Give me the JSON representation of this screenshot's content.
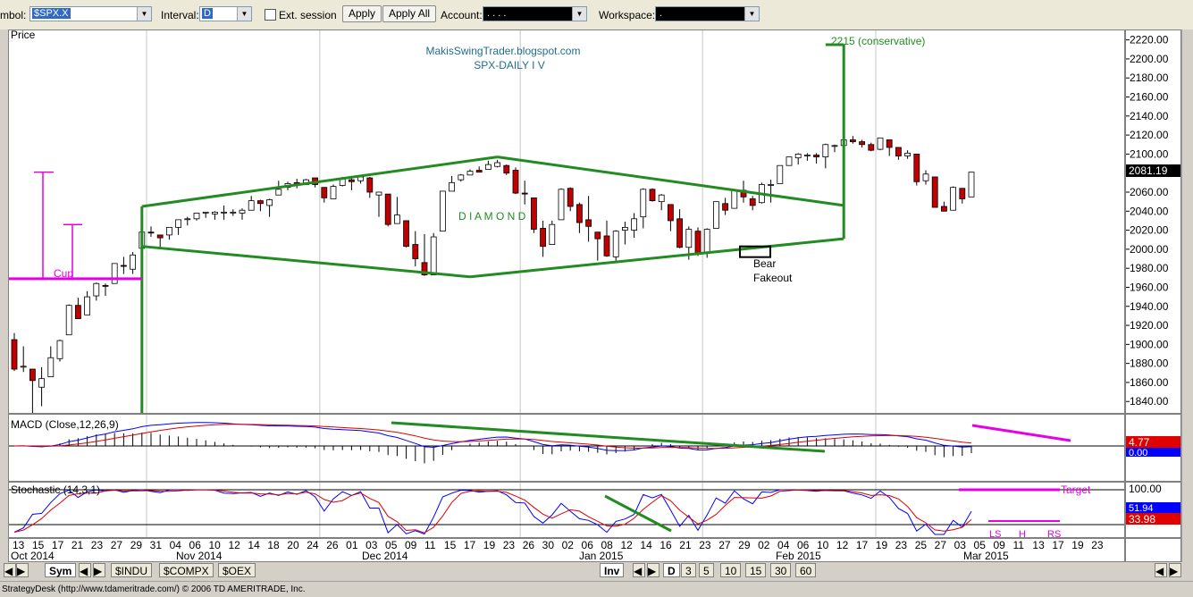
{
  "toolbar": {
    "symbol_label": "mbol:",
    "symbol_value": "$SPX.X",
    "interval_label": "Interval:",
    "interval_value": "D",
    "ext_session_label": "Ext. session",
    "apply_label": "Apply",
    "apply_all_label": "Apply All",
    "account_label": "Account:",
    "account_value": ". . . .",
    "workspace_label": "Workspace:",
    "workspace_value": "."
  },
  "price_pane": {
    "title": "Price",
    "watermark_line1": "MakisSwingTrader.blogspot.com",
    "watermark_line2": "SPX-DAILY  I V",
    "pattern_label": "D I A M O N D",
    "target_label": "2215 (conservative)",
    "cup_label": "Cup",
    "fakeout_line1": "Bear",
    "fakeout_line2": "Fakeout",
    "last_price": "2081.19",
    "y_ticks": [
      "2220.00",
      "2200.00",
      "2180.00",
      "2160.00",
      "2140.00",
      "2120.00",
      "2100.00",
      "2080.00",
      "2060.00",
      "2040.00",
      "2020.00",
      "2000.00",
      "1980.00",
      "1960.00",
      "1940.00",
      "1920.00",
      "1900.00",
      "1880.00",
      "1860.00",
      "1840.00"
    ]
  },
  "macd_pane": {
    "title": "MACD (Close,12,26,9)",
    "value1": "4.77",
    "value2": "0.00"
  },
  "stoch_pane": {
    "title": "Stochastic (14,3,1)",
    "target_label": "Target",
    "ls_label": "LS",
    "h_label": "H",
    "rs_label": "RS",
    "level_100": "100.00",
    "value1": "51.94",
    "value2": "33.98"
  },
  "x_axis": {
    "day_labels": [
      "13",
      "15",
      "17",
      "21",
      "23",
      "27",
      "29",
      "31",
      "04",
      "06",
      "10",
      "12",
      "14",
      "18",
      "20",
      "24",
      "26",
      "01",
      "03",
      "05",
      "09",
      "11",
      "15",
      "17",
      "19",
      "23",
      "26",
      "30",
      "02",
      "06",
      "08",
      "12",
      "14",
      "16",
      "21",
      "23",
      "27",
      "29",
      "02",
      "04",
      "06",
      "10",
      "12",
      "17",
      "19",
      "23",
      "25",
      "27",
      "03",
      "05",
      "09",
      "11",
      "13",
      "17",
      "19",
      "23"
    ],
    "month_labels": [
      "Oct 2014",
      "Nov 2014",
      "Dec 2014",
      "Jan 2015",
      "Feb 2015",
      "Mar 2015"
    ]
  },
  "tabs": {
    "sym_label": "Sym",
    "indu": "$INDU",
    "compx": "$COMPX",
    "oex": "$OEX",
    "inv_label": "Inv",
    "intervals": [
      "D",
      "3",
      "5",
      "10",
      "15",
      "30",
      "60"
    ]
  },
  "status_text": "StrategyDesk (http://www.tdameritrade.com/) © 2006 TD AMERITRADE, Inc.",
  "colors": {
    "up": "#ffffff",
    "down": "#c00000",
    "pattern": "#228b22",
    "cup": "#e600e6",
    "macd": "#0000ff",
    "signal": "#dd0000"
  },
  "chart_data": {
    "type": "candlestick",
    "title": "SPX-DAILY  I V",
    "ylabel": "Price",
    "ylim": [
      1828,
      2230
    ],
    "x": [
      "Oct 13",
      "Oct 14",
      "Oct 15",
      "Oct 16",
      "Oct 17",
      "Oct 20",
      "Oct 21",
      "Oct 22",
      "Oct 23",
      "Oct 24",
      "Oct 27",
      "Oct 28",
      "Oct 29",
      "Oct 30",
      "Oct 31",
      "Nov 03",
      "Nov 04",
      "Nov 05",
      "Nov 06",
      "Nov 07",
      "Nov 10",
      "Nov 11",
      "Nov 12",
      "Nov 13",
      "Nov 14",
      "Nov 17",
      "Nov 18",
      "Nov 19",
      "Nov 20",
      "Nov 21",
      "Nov 24",
      "Nov 25",
      "Nov 26",
      "Nov 28",
      "Dec 01",
      "Dec 02",
      "Dec 03",
      "Dec 04",
      "Dec 05",
      "Dec 08",
      "Dec 09",
      "Dec 10",
      "Dec 11",
      "Dec 12",
      "Dec 15",
      "Dec 16",
      "Dec 17",
      "Dec 18",
      "Dec 19",
      "Dec 22",
      "Dec 23",
      "Dec 24",
      "Dec 26",
      "Dec 29",
      "Dec 30",
      "Dec 31",
      "Jan 02",
      "Jan 05",
      "Jan 06",
      "Jan 07",
      "Jan 08",
      "Jan 09",
      "Jan 12",
      "Jan 13",
      "Jan 14",
      "Jan 15",
      "Jan 16",
      "Jan 20",
      "Jan 21",
      "Jan 22",
      "Jan 23",
      "Jan 26",
      "Jan 27",
      "Jan 28",
      "Jan 29",
      "Jan 30",
      "Feb 02",
      "Feb 03",
      "Feb 04",
      "Feb 05",
      "Feb 06",
      "Feb 09",
      "Feb 10",
      "Feb 11",
      "Feb 12",
      "Feb 13",
      "Feb 17",
      "Feb 18",
      "Feb 19",
      "Feb 20",
      "Feb 23",
      "Feb 24",
      "Feb 25",
      "Feb 26",
      "Feb 27",
      "Mar 02",
      "Mar 03",
      "Mar 04",
      "Mar 05",
      "Mar 06",
      "Mar 09",
      "Mar 10",
      "Mar 11",
      "Mar 12",
      "Mar 13",
      "Mar 16"
    ],
    "ohlc": [
      [
        1905,
        1912,
        1872,
        1874
      ],
      [
        1877,
        1898,
        1871,
        1877
      ],
      [
        1874,
        1874,
        1821,
        1862
      ],
      [
        1855,
        1876,
        1835,
        1864
      ],
      [
        1866,
        1898,
        1866,
        1886
      ],
      [
        1885,
        1905,
        1882,
        1904
      ],
      [
        1910,
        1942,
        1910,
        1941
      ],
      [
        1941,
        1949,
        1927,
        1927
      ],
      [
        1931,
        1956,
        1931,
        1950
      ],
      [
        1951,
        1965,
        1946,
        1964
      ],
      [
        1962,
        1964,
        1951,
        1961
      ],
      [
        1964,
        1985,
        1964,
        1985
      ],
      [
        1983,
        1992,
        1974,
        1982
      ],
      [
        1979,
        1997,
        1974,
        1994
      ],
      [
        2001,
        2018,
        2001,
        2018
      ],
      [
        2018,
        2024,
        2013,
        2017
      ],
      [
        2015,
        2015,
        2001,
        2012
      ],
      [
        2015,
        2023,
        2010,
        2023
      ],
      [
        2023,
        2031,
        2015,
        2031
      ],
      [
        2032,
        2034,
        2025,
        2032
      ],
      [
        2032,
        2038,
        2030,
        2038
      ],
      [
        2038,
        2039,
        2033,
        2039
      ],
      [
        2037,
        2040,
        2031,
        2039
      ],
      [
        2039,
        2046,
        2031,
        2039
      ],
      [
        2039,
        2042,
        2035,
        2039
      ],
      [
        2038,
        2043,
        2031,
        2041
      ],
      [
        2041,
        2056,
        2041,
        2051
      ],
      [
        2051,
        2052,
        2040,
        2048
      ],
      [
        2046,
        2053,
        2034,
        2052
      ],
      [
        2057,
        2072,
        2057,
        2063
      ],
      [
        2065,
        2071,
        2062,
        2069
      ],
      [
        2070,
        2074,
        2064,
        2068
      ],
      [
        2068,
        2074,
        2068,
        2073
      ],
      [
        2075,
        2075,
        2065,
        2068
      ],
      [
        2065,
        2065,
        2049,
        2054
      ],
      [
        2053,
        2068,
        2053,
        2066
      ],
      [
        2067,
        2076,
        2066,
        2074
      ],
      [
        2073,
        2077,
        2062,
        2071
      ],
      [
        2072,
        2078,
        2069,
        2076
      ],
      [
        2075,
        2076,
        2054,
        2060
      ],
      [
        2057,
        2060,
        2034,
        2060
      ],
      [
        2058,
        2058,
        2024,
        2026
      ],
      [
        2027,
        2055,
        2027,
        2036
      ],
      [
        2030,
        2030,
        2002,
        2003
      ],
      [
        2005,
        2019,
        1982,
        1990
      ],
      [
        1986,
        2016,
        1972,
        1973
      ],
      [
        1973,
        2017,
        1973,
        2013
      ],
      [
        2019,
        2061,
        2019,
        2061
      ],
      [
        2061,
        2077,
        2061,
        2070
      ],
      [
        2073,
        2079,
        2071,
        2078
      ],
      [
        2078,
        2084,
        2078,
        2082
      ],
      [
        2083,
        2087,
        2081,
        2081
      ],
      [
        2084,
        2093,
        2084,
        2089
      ],
      [
        2087,
        2094,
        2086,
        2091
      ],
      [
        2088,
        2089,
        2078,
        2080
      ],
      [
        2083,
        2086,
        2058,
        2059
      ],
      [
        2059,
        2072,
        2047,
        2058
      ],
      [
        2054,
        2054,
        2017,
        2021
      ],
      [
        2022,
        2030,
        1992,
        2003
      ],
      [
        2005,
        2030,
        2005,
        2026
      ],
      [
        2031,
        2064,
        2031,
        2063
      ],
      [
        2064,
        2065,
        2040,
        2045
      ],
      [
        2047,
        2049,
        2017,
        2028
      ],
      [
        2031,
        2056,
        2008,
        2024
      ],
      [
        2018,
        2018,
        1988,
        2011
      ],
      [
        2014,
        2030,
        1992,
        1993
      ],
      [
        1992,
        2020,
        1988,
        2019
      ],
      [
        2020,
        2029,
        2005,
        2023
      ],
      [
        2020,
        2038,
        2012,
        2032
      ],
      [
        2034,
        2064,
        2022,
        2063
      ],
      [
        2063,
        2064,
        2050,
        2051
      ],
      [
        2050,
        2058,
        2041,
        2057
      ],
      [
        2047,
        2047,
        2019,
        2030
      ],
      [
        2032,
        2042,
        2001,
        2002
      ],
      [
        2002,
        2024,
        1989,
        2021
      ],
      [
        2019,
        2023,
        1993,
        1995
      ],
      [
        1997,
        2022,
        1991,
        2021
      ],
      [
        2022,
        2050,
        2022,
        2050
      ],
      [
        2048,
        2054,
        2036,
        2041
      ],
      [
        2043,
        2063,
        2043,
        2062
      ],
      [
        2062,
        2072,
        2049,
        2055
      ],
      [
        2053,
        2056,
        2041,
        2046
      ],
      [
        2049,
        2070,
        2048,
        2068
      ],
      [
        2068,
        2073,
        2049,
        2068
      ],
      [
        2069,
        2088,
        2069,
        2088
      ],
      [
        2088,
        2097,
        2088,
        2097
      ],
      [
        2096,
        2101,
        2089,
        2100
      ],
      [
        2099,
        2101,
        2093,
        2099
      ],
      [
        2099,
        2101,
        2090,
        2097
      ],
      [
        2097,
        2111,
        2085,
        2110
      ],
      [
        2109,
        2110,
        2102,
        2109
      ],
      [
        2109,
        2117,
        2105,
        2115
      ],
      [
        2115,
        2119,
        2111,
        2113
      ],
      [
        2113,
        2115,
        2107,
        2110
      ],
      [
        2110,
        2112,
        2103,
        2104
      ],
      [
        2105,
        2117,
        2104,
        2117
      ],
      [
        2115,
        2115,
        2098,
        2107
      ],
      [
        2107,
        2107,
        2094,
        2098
      ],
      [
        2098,
        2104,
        2095,
        2101
      ],
      [
        2100,
        2100,
        2067,
        2071
      ],
      [
        2072,
        2083,
        2068,
        2079
      ],
      [
        2076,
        2076,
        2044,
        2044
      ],
      [
        2045,
        2050,
        2040,
        2040
      ],
      [
        2041,
        2066,
        2041,
        2065
      ],
      [
        2064,
        2064,
        2048,
        2053
      ],
      [
        2055,
        2081,
        2055,
        2081
      ]
    ],
    "annotations": [
      "D I A M O N D",
      "2215 (conservative)",
      "Cup",
      "Bear Fakeout"
    ]
  }
}
